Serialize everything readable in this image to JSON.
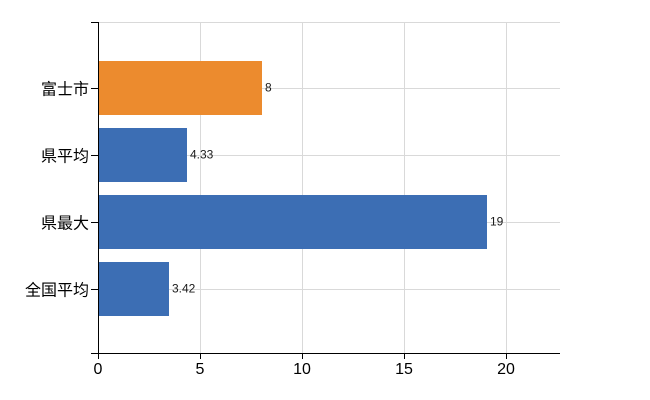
{
  "chart_data": {
    "type": "bar",
    "orientation": "horizontal",
    "categories": [
      "富士市",
      "県平均",
      "県最大",
      "全国平均"
    ],
    "values": [
      8,
      4.33,
      19,
      3.42
    ],
    "value_labels": [
      "8",
      "4.33",
      "19",
      "3.42"
    ],
    "bar_colors": [
      "#EC8B2E",
      "#3C6EB4",
      "#3C6EB4",
      "#3C6EB4"
    ],
    "highlight_color": "#EC8B2E",
    "default_bar_color": "#3C6EB4",
    "x_ticks": [
      0,
      5,
      10,
      15,
      20
    ],
    "x_tick_labels": [
      "0",
      "5",
      "10",
      "15",
      "20"
    ],
    "xlim": [
      0,
      22.65
    ],
    "grid": true,
    "gridline_color": "#D9D9D9",
    "axis_color": "#000000",
    "label_color": "#000000",
    "legend": "none"
  }
}
